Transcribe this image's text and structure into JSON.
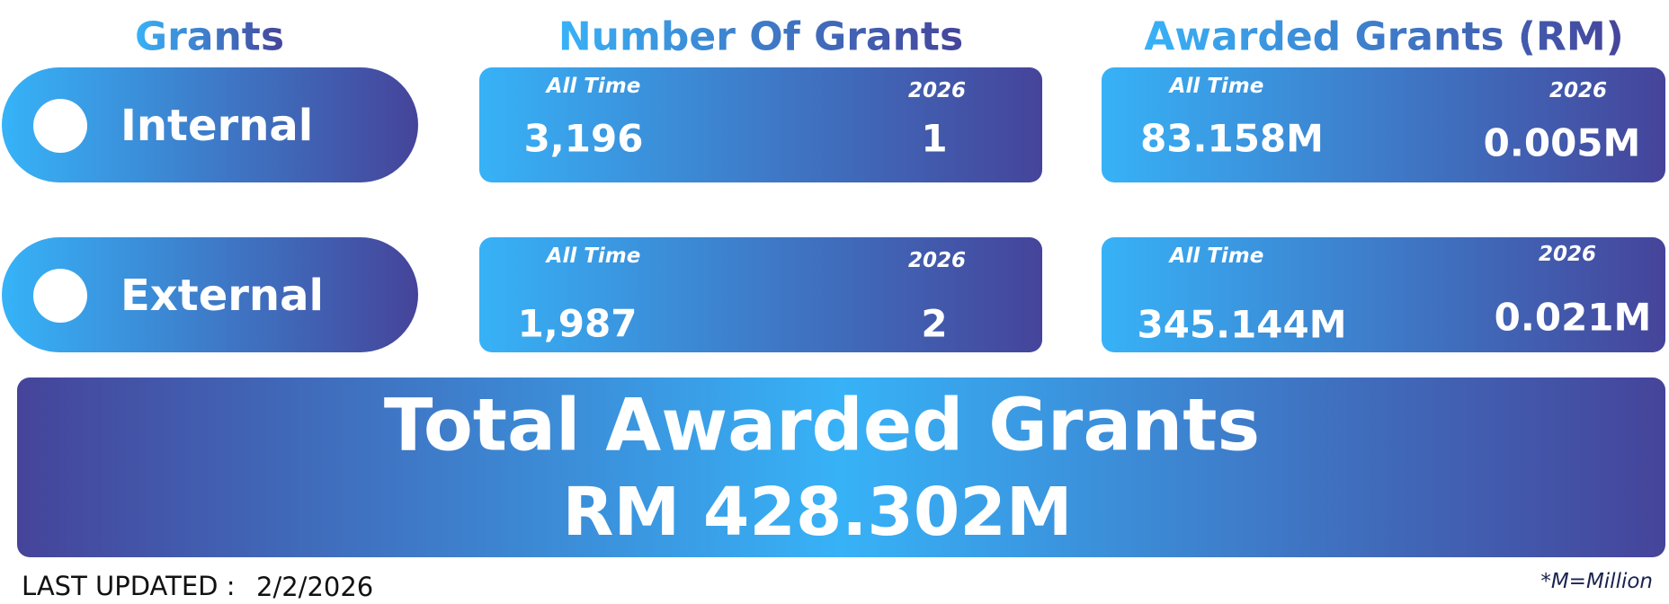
{
  "header": {
    "grants": "Grants",
    "number_of_grants": "Number Of Grants",
    "awarded_grants": "Awarded Grants (RM)"
  },
  "rows": [
    {
      "label": "Internal",
      "count_all_time_label": "All Time",
      "count_year_label": "2026",
      "count_all_time": "3,196",
      "count_year": "1",
      "awarded_all_time_label": "All Time",
      "awarded_year_label": "2026",
      "awarded_all_time": "83.158M",
      "awarded_year": "0.005M"
    },
    {
      "label": "External",
      "count_all_time_label": "All Time",
      "count_year_label": "2026",
      "count_all_time": "1,987",
      "count_year": "2",
      "awarded_all_time_label": "All Time",
      "awarded_year_label": "2026",
      "awarded_all_time": "345.144M",
      "awarded_year": "0.021M"
    }
  ],
  "total": {
    "title": "Total Awarded Grants",
    "value": "RM 428.302M"
  },
  "footer": {
    "last_updated_label": "LAST UPDATED :",
    "last_updated_date": "2/2/2026",
    "note": "*M=Million"
  }
}
